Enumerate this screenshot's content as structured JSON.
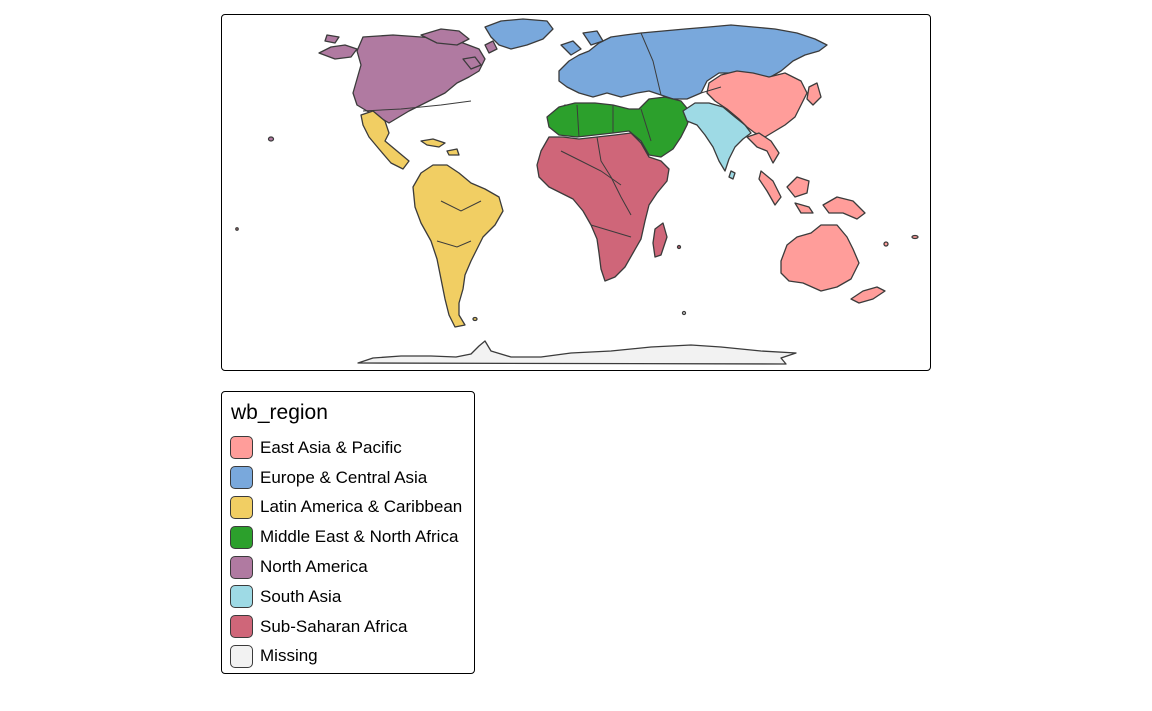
{
  "map": {
    "variable": "wb_region",
    "regions": [
      {
        "id": "east-asia-pacific",
        "label": "East Asia & Pacific",
        "color": "#FF9D9A"
      },
      {
        "id": "europe-central-asia",
        "label": "Europe & Central Asia",
        "color": "#79A8DC"
      },
      {
        "id": "latin-america-caribbean",
        "label": "Latin America & Caribbean",
        "color": "#F1CE63"
      },
      {
        "id": "middle-east-north-africa",
        "label": "Middle East & North Africa",
        "color": "#2CA02C"
      },
      {
        "id": "north-america",
        "label": "North America",
        "color": "#B07AA1"
      },
      {
        "id": "south-asia",
        "label": "South Asia",
        "color": "#9EDAE5"
      },
      {
        "id": "sub-saharan-africa",
        "label": "Sub-Saharan Africa",
        "color": "#CF6679"
      },
      {
        "id": "missing",
        "label": "Missing",
        "color": "#F2F2F2"
      }
    ]
  },
  "legend": {
    "title": "wb_region",
    "items": [
      {
        "label": "East Asia & Pacific",
        "color": "#FF9D9A"
      },
      {
        "label": "Europe & Central Asia",
        "color": "#79A8DC"
      },
      {
        "label": "Latin America & Caribbean",
        "color": "#F1CE63"
      },
      {
        "label": "Middle East & North Africa",
        "color": "#2CA02C"
      },
      {
        "label": "North America",
        "color": "#B07AA1"
      },
      {
        "label": "South Asia",
        "color": "#9EDAE5"
      },
      {
        "label": "Sub-Saharan Africa",
        "color": "#CF6679"
      },
      {
        "label": "Missing",
        "color": "#F2F2F2"
      }
    ]
  }
}
